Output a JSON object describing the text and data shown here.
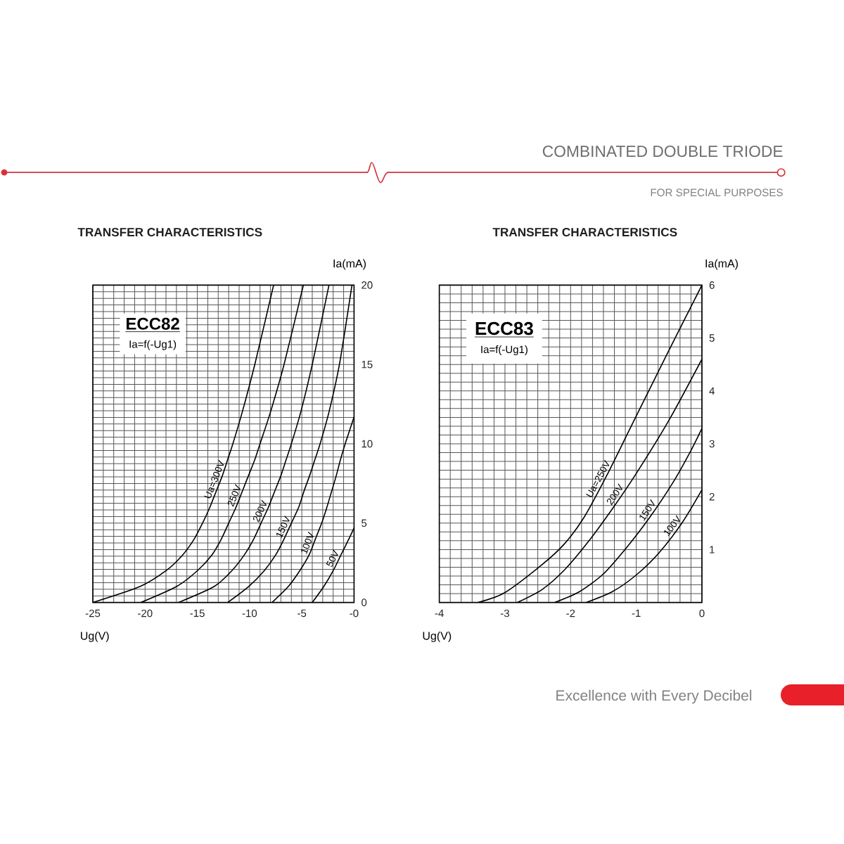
{
  "chart_data": [
    {
      "type": "other",
      "title": "COMBINATED DOUBLE TRIODE",
      "subtitle": "FOR SPECIAL PURPOSES",
      "annotations": [
        "Excellence with Every Decibel"
      ]
    },
    {
      "type": "line",
      "title": "TRANSFER CHARACTERISTICS",
      "xlabel": "Ug(V)",
      "ylabel": "Ia(mA)",
      "annotations": [
        "ECC82",
        "Ia=f(-Ug1)"
      ],
      "xlim": [
        -25,
        0
      ],
      "ylim": [
        0,
        20
      ],
      "grid": true,
      "xticks": [
        -25,
        {
          "value": -24,
          "label": null
        },
        {
          "value": -23,
          "label": null
        },
        {
          "value": -22,
          "label": null
        },
        {
          "value": -21,
          "label": null
        },
        -20,
        {
          "value": -19,
          "label": null
        },
        {
          "value": -18,
          "label": null
        },
        {
          "value": -17,
          "label": null
        },
        {
          "value": -16,
          "label": null
        },
        -15,
        {
          "value": -14,
          "label": null
        },
        {
          "value": -13,
          "label": null
        },
        {
          "value": -12,
          "label": null
        },
        {
          "value": -11,
          "label": null
        },
        -10,
        {
          "value": -9,
          "label": null
        },
        {
          "value": -8,
          "label": null
        },
        {
          "value": -7,
          "label": null
        },
        {
          "value": -6,
          "label": null
        },
        -5,
        {
          "value": -4,
          "label": null
        },
        {
          "value": -3,
          "label": null
        },
        {
          "value": -2,
          "label": null
        },
        {
          "value": -1,
          "label": null
        },
        {
          "value": 0,
          "label": "-0"
        }
      ],
      "yticks": [
        0,
        {
          "value": 0.4167,
          "label": null
        },
        {
          "value": 0.8333,
          "label": null
        },
        {
          "value": 1.25,
          "label": null
        },
        {
          "value": 1.6667,
          "label": null
        },
        {
          "value": 2.0833,
          "label": null
        },
        {
          "value": 2.5,
          "label": null
        },
        {
          "value": 2.9167,
          "label": null
        },
        {
          "value": 3.3333,
          "label": null
        },
        {
          "value": 3.75,
          "label": null
        },
        {
          "value": 4.1667,
          "label": null
        },
        {
          "value": 4.5833,
          "label": null
        },
        5,
        {
          "value": 5.4167,
          "label": null
        },
        {
          "value": 5.8333,
          "label": null
        },
        {
          "value": 6.25,
          "label": null
        },
        {
          "value": 6.6667,
          "label": null
        },
        {
          "value": 7.0833,
          "label": null
        },
        {
          "value": 7.5,
          "label": null
        },
        {
          "value": 7.9167,
          "label": null
        },
        {
          "value": 8.3333,
          "label": null
        },
        {
          "value": 8.75,
          "label": null
        },
        {
          "value": 9.1667,
          "label": null
        },
        {
          "value": 9.5833,
          "label": null
        },
        10,
        {
          "value": 10.4167,
          "label": null
        },
        {
          "value": 10.8333,
          "label": null
        },
        {
          "value": 11.25,
          "label": null
        },
        {
          "value": 11.6667,
          "label": null
        },
        {
          "value": 12.0833,
          "label": null
        },
        {
          "value": 12.5,
          "label": null
        },
        {
          "value": 12.9167,
          "label": null
        },
        {
          "value": 13.3333,
          "label": null
        },
        {
          "value": 13.75,
          "label": null
        },
        {
          "value": 14.1667,
          "label": null
        },
        {
          "value": 14.5833,
          "label": null
        },
        15,
        {
          "value": 15.4167,
          "label": null
        },
        {
          "value": 15.8333,
          "label": null
        },
        {
          "value": 16.25,
          "label": null
        },
        {
          "value": 16.6667,
          "label": null
        },
        {
          "value": 17.0833,
          "label": null
        },
        {
          "value": 17.5,
          "label": null
        },
        {
          "value": 17.9167,
          "label": null
        },
        {
          "value": 18.3333,
          "label": null
        },
        {
          "value": 18.75,
          "label": null
        },
        {
          "value": 19.1667,
          "label": null
        },
        {
          "value": 19.5833,
          "label": null
        },
        20
      ],
      "series": [
        {
          "name": "Ua=300V",
          "color": "#000000",
          "x": [
            -25,
            -20.5,
            -18,
            -16.4,
            -15.3,
            -14.5,
            -13.8,
            -13.2,
            -12.6,
            -12.1,
            -11.6,
            -10.7,
            -9.5,
            -7.7
          ],
          "values": [
            0,
            1,
            2,
            3,
            4,
            5,
            6,
            7,
            8,
            9,
            10,
            12,
            15,
            20
          ]
        },
        {
          "name": "250V",
          "color": "#000000",
          "x": [
            -20.4,
            -17,
            -15,
            -13.6,
            -12.7,
            -12,
            -11.3,
            -10.7,
            -10.1,
            -9.5,
            -9,
            -8,
            -6.7,
            -4.85
          ],
          "values": [
            0,
            1,
            2,
            3,
            4,
            5,
            6,
            7,
            8,
            9,
            10,
            12,
            15,
            20
          ]
        },
        {
          "name": "200V",
          "color": "#000000",
          "x": [
            -16.8,
            -13.4,
            -11.7,
            -10.5,
            -9.6,
            -8.9,
            -8.2,
            -7.6,
            -7,
            -6.5,
            -6,
            -5.1,
            -4,
            -2.4
          ],
          "values": [
            0,
            1,
            2,
            3,
            4,
            5,
            6,
            7,
            8,
            9,
            10,
            12,
            15,
            20
          ]
        },
        {
          "name": "150V",
          "color": "#000000",
          "x": [
            -12.1,
            -10.1,
            -8.6,
            -7.5,
            -6.7,
            -6,
            -5.3,
            -4.8,
            -4.25,
            -3.75,
            -3.25,
            -2.4,
            -1.4,
            -0.2
          ],
          "values": [
            0,
            1,
            2,
            3,
            4,
            5,
            6,
            7,
            8,
            9,
            10,
            12,
            15,
            20
          ]
        },
        {
          "name": "100V",
          "color": "#000000",
          "x": [
            -7.85,
            -6.3,
            -5.2,
            -4.3,
            -3.7,
            -3.1,
            -2.6,
            -2.15,
            -1.7,
            -1.3,
            -0.85,
            0
          ],
          "values": [
            0,
            1,
            2,
            3,
            4,
            5,
            6,
            7,
            8,
            9,
            10,
            11.7
          ]
        },
        {
          "name": "50V",
          "color": "#000000",
          "x": [
            -4,
            -2.9,
            -2,
            -1.25,
            -0.5,
            0
          ],
          "values": [
            0,
            1,
            2,
            3,
            4,
            4.7
          ]
        }
      ]
    },
    {
      "type": "line",
      "title": "TRANSFER CHARACTERISTICS",
      "xlabel": "Ug(V)",
      "ylabel": "Ia(mA)",
      "annotations": [
        "ECC83",
        "Ia=f(-Ug1)"
      ],
      "xlim": [
        -4,
        0
      ],
      "ylim": [
        0,
        6
      ],
      "grid": true,
      "xticks": [
        -4,
        {
          "value": -3.8333,
          "label": null
        },
        {
          "value": -3.6667,
          "label": null
        },
        {
          "value": -3.5,
          "label": null
        },
        {
          "value": -3.3333,
          "label": null
        },
        {
          "value": -3.1667,
          "label": null
        },
        -3,
        {
          "value": -2.8333,
          "label": null
        },
        {
          "value": -2.6667,
          "label": null
        },
        {
          "value": -2.5,
          "label": null
        },
        {
          "value": -2.3333,
          "label": null
        },
        {
          "value": -2.1667,
          "label": null
        },
        -2,
        {
          "value": -1.8333,
          "label": null
        },
        {
          "value": -1.6667,
          "label": null
        },
        {
          "value": -1.5,
          "label": null
        },
        {
          "value": -1.3333,
          "label": null
        },
        {
          "value": -1.1667,
          "label": null
        },
        -1,
        {
          "value": -0.8333,
          "label": null
        },
        {
          "value": -0.6667,
          "label": null
        },
        {
          "value": -0.5,
          "label": null
        },
        {
          "value": -0.3333,
          "label": null
        },
        {
          "value": -0.1667,
          "label": null
        },
        0
      ],
      "yticks": [
        {
          "value": 0,
          "label": null
        },
        {
          "value": 0.1667,
          "label": null
        },
        {
          "value": 0.3333,
          "label": null
        },
        {
          "value": 0.5,
          "label": null
        },
        {
          "value": 0.6667,
          "label": null
        },
        {
          "value": 0.8333,
          "label": null
        },
        1,
        {
          "value": 1.1667,
          "label": null
        },
        {
          "value": 1.3333,
          "label": null
        },
        {
          "value": 1.5,
          "label": null
        },
        {
          "value": 1.6667,
          "label": null
        },
        {
          "value": 1.8333,
          "label": null
        },
        2,
        {
          "value": 2.1667,
          "label": null
        },
        {
          "value": 2.3333,
          "label": null
        },
        {
          "value": 2.5,
          "label": null
        },
        {
          "value": 2.6667,
          "label": null
        },
        {
          "value": 2.8333,
          "label": null
        },
        3,
        {
          "value": 3.1667,
          "label": null
        },
        {
          "value": 3.3333,
          "label": null
        },
        {
          "value": 3.5,
          "label": null
        },
        {
          "value": 3.6667,
          "label": null
        },
        {
          "value": 3.8333,
          "label": null
        },
        4,
        {
          "value": 4.1667,
          "label": null
        },
        {
          "value": 4.3333,
          "label": null
        },
        {
          "value": 4.5,
          "label": null
        },
        {
          "value": 4.6667,
          "label": null
        },
        {
          "value": 4.8333,
          "label": null
        },
        5,
        {
          "value": 5.1667,
          "label": null
        },
        {
          "value": 5.3333,
          "label": null
        },
        {
          "value": 5.5,
          "label": null
        },
        {
          "value": 5.6667,
          "label": null
        },
        {
          "value": 5.8333,
          "label": null
        },
        6
      ],
      "series": [
        {
          "name": "Ua=250V",
          "color": "#000000",
          "x": [
            -3.41,
            -3.01,
            -2.44,
            -2.1,
            -1.8,
            -1.45,
            -1.09,
            -0.55,
            0
          ],
          "values": [
            0,
            0.18,
            0.71,
            1.1,
            1.6,
            2.4,
            3.3,
            4.65,
            6
          ]
        },
        {
          "name": "200V",
          "color": "#000000",
          "x": [
            -2.81,
            -2.44,
            -2.09,
            -1.73,
            -1.37,
            -1.01,
            -0.5,
            0
          ],
          "values": [
            0,
            0.24,
            0.62,
            1.15,
            1.76,
            2.42,
            3.45,
            4.6
          ]
        },
        {
          "name": "150V",
          "color": "#000000",
          "x": [
            -2.24,
            -1.87,
            -1.51,
            -1.16,
            -0.8,
            -0.44,
            -0.16,
            0
          ],
          "values": [
            0,
            0.2,
            0.53,
            1.02,
            1.6,
            2.27,
            2.89,
            3.29
          ]
        },
        {
          "name": "100V",
          "color": "#000000",
          "x": [
            -1.76,
            -1.37,
            -1.01,
            -0.66,
            -0.3,
            0
          ],
          "values": [
            0,
            0.2,
            0.51,
            0.93,
            1.51,
            2.13
          ]
        }
      ]
    }
  ]
}
